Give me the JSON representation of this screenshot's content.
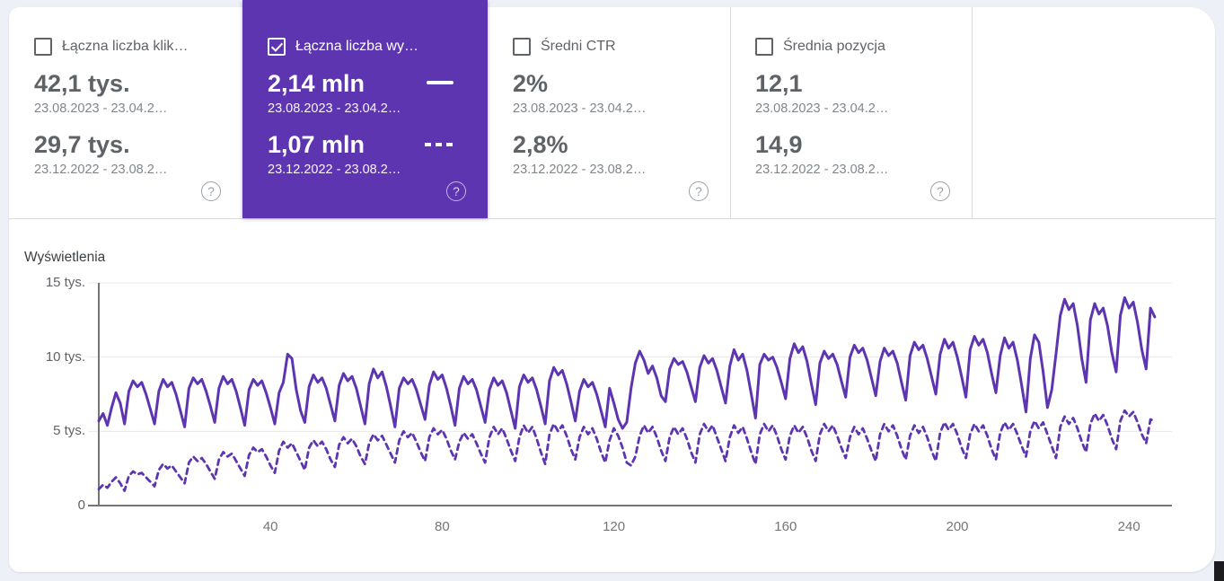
{
  "page": {
    "colors": {
      "background": "#edf0f6",
      "panel": "#ffffff",
      "accent": "#5e35b1",
      "divider": "#dadce0",
      "grid": "#e8e8e8",
      "axis": "#757575",
      "label": "#5f6368",
      "muted": "#80868b"
    }
  },
  "cards": {
    "help_glyph": "?",
    "items": [
      {
        "id": "clicks",
        "label": "Łączna liczba klik…",
        "checked": false,
        "value_current": "42,1 tys.",
        "period_current": "23.08.2023 - 23.04.2…",
        "value_previous": "29,7 tys.",
        "period_previous": "23.12.2022 - 23.08.2…"
      },
      {
        "id": "impressions",
        "label": "Łączna liczba wy…",
        "checked": true,
        "value_current": "2,14 mln",
        "period_current": "23.08.2023 - 23.04.2…",
        "value_previous": "1,07 mln",
        "period_previous": "23.12.2022 - 23.08.2…"
      },
      {
        "id": "ctr",
        "label": "Średni CTR",
        "checked": false,
        "value_current": "2%",
        "period_current": "23.08.2023 - 23.04.2…",
        "value_previous": "2,8%",
        "period_previous": "23.12.2022 - 23.08.2…"
      },
      {
        "id": "position",
        "label": "Średnia pozycja",
        "checked": false,
        "value_current": "12,1",
        "period_current": "23.08.2023 - 23.04.2…",
        "value_previous": "14,9",
        "period_previous": "23.12.2022 - 23.08.2…"
      }
    ]
  },
  "chart_data": {
    "type": "line",
    "title": "Wyświetlenia",
    "unit": "tys.",
    "ylim": [
      0,
      15
    ],
    "grid": true,
    "y_ticks": [
      {
        "label": "0",
        "value": 0
      },
      {
        "label": "5 tys.",
        "value": 5
      },
      {
        "label": "10 tys.",
        "value": 10
      },
      {
        "label": "15 tys.",
        "value": 15
      }
    ],
    "x_ticks": [
      {
        "label": "40",
        "value": 40
      },
      {
        "label": "80",
        "value": 80
      },
      {
        "label": "120",
        "value": 120
      },
      {
        "label": "160",
        "value": 160
      },
      {
        "label": "200",
        "value": 200
      },
      {
        "label": "240",
        "value": 240
      }
    ],
    "series": [
      {
        "name": "23.12.2022 - 23.08.2…",
        "style": "dashed",
        "color": "#5e35b1",
        "values": [
          1.1,
          1.4,
          1.2,
          1.6,
          1.9,
          1.5,
          1.0,
          2.0,
          2.3,
          2.1,
          2.2,
          1.9,
          1.6,
          1.3,
          2.4,
          2.8,
          2.5,
          2.7,
          2.3,
          1.9,
          1.5,
          2.9,
          3.3,
          3.0,
          3.2,
          2.8,
          2.3,
          1.8,
          3.1,
          3.6,
          3.3,
          3.5,
          3.0,
          2.5,
          2.0,
          3.4,
          3.9,
          3.6,
          3.8,
          3.3,
          2.7,
          2.2,
          3.7,
          4.3,
          3.9,
          4.2,
          3.6,
          3.0,
          2.4,
          3.9,
          4.4,
          4.0,
          4.3,
          3.8,
          3.1,
          2.6,
          4.1,
          4.6,
          4.2,
          4.5,
          4.0,
          3.3,
          2.8,
          4.2,
          4.8,
          4.4,
          4.7,
          4.1,
          3.5,
          2.9,
          4.4,
          5.0,
          4.6,
          4.9,
          4.3,
          3.6,
          3.0,
          4.6,
          5.2,
          4.8,
          5.1,
          4.5,
          3.7,
          3.1,
          4.3,
          4.9,
          4.5,
          4.8,
          4.2,
          3.5,
          2.9,
          4.6,
          5.3,
          4.8,
          5.2,
          4.5,
          3.7,
          3.0,
          4.6,
          5.4,
          4.9,
          5.3,
          4.5,
          3.6,
          2.8,
          4.8,
          5.5,
          5.0,
          5.4,
          4.7,
          3.8,
          3.1,
          4.6,
          5.3,
          4.8,
          5.2,
          4.5,
          3.6,
          2.9,
          4.4,
          5.2,
          4.7,
          3.9,
          2.9,
          2.7,
          3.3,
          4.7,
          5.4,
          4.9,
          5.3,
          4.6,
          3.7,
          3.0,
          4.6,
          5.3,
          4.8,
          5.2,
          4.5,
          3.6,
          2.9,
          4.8,
          5.5,
          5.0,
          5.4,
          4.6,
          3.8,
          3.0,
          4.6,
          5.4,
          4.9,
          5.3,
          4.5,
          3.6,
          2.8,
          4.8,
          5.5,
          5.0,
          5.4,
          4.7,
          3.8,
          3.1,
          4.7,
          5.4,
          4.9,
          5.3,
          4.6,
          3.7,
          3.0,
          4.8,
          5.5,
          5.0,
          5.4,
          4.7,
          3.9,
          3.2,
          4.6,
          5.3,
          4.8,
          5.2,
          4.5,
          3.7,
          3.0,
          4.8,
          5.5,
          5.0,
          5.4,
          4.7,
          3.8,
          3.1,
          4.7,
          5.4,
          4.9,
          5.3,
          4.6,
          3.7,
          3.0,
          4.9,
          5.6,
          5.1,
          5.5,
          4.8,
          3.9,
          3.2,
          4.8,
          5.5,
          5.0,
          5.4,
          4.7,
          3.8,
          3.1,
          4.9,
          5.6,
          5.1,
          5.5,
          4.8,
          4.0,
          3.3,
          5.0,
          5.7,
          5.2,
          5.6,
          4.8,
          4.0,
          3.2,
          5.3,
          6.0,
          5.5,
          5.9,
          5.2,
          4.3,
          3.6,
          5.5,
          6.2,
          5.7,
          6.1,
          5.4,
          4.5,
          3.8,
          5.7,
          6.4,
          6.0,
          6.3,
          5.6,
          4.8,
          4.2,
          5.8,
          5.7
        ]
      },
      {
        "name": "23.08.2023 - 23.04.2…",
        "style": "solid",
        "color": "#5e35b1",
        "values": [
          5.7,
          6.2,
          5.4,
          6.6,
          7.6,
          6.9,
          5.5,
          7.7,
          8.4,
          8.0,
          8.3,
          7.5,
          6.5,
          5.5,
          7.7,
          8.5,
          8.0,
          8.3,
          7.5,
          6.4,
          5.3,
          7.9,
          8.6,
          8.2,
          8.5,
          7.7,
          6.7,
          5.6,
          7.9,
          8.7,
          8.2,
          8.5,
          7.7,
          6.6,
          5.4,
          7.8,
          8.5,
          8.1,
          8.4,
          7.6,
          6.6,
          5.5,
          7.6,
          8.3,
          10.2,
          9.9,
          7.8,
          6.4,
          5.6,
          8.0,
          8.8,
          8.3,
          8.6,
          7.9,
          6.8,
          5.7,
          8.1,
          8.9,
          8.4,
          8.7,
          7.9,
          6.7,
          5.5,
          8.2,
          9.2,
          8.6,
          9.0,
          8.0,
          6.7,
          5.3,
          7.9,
          8.6,
          8.2,
          8.5,
          7.8,
          6.8,
          5.8,
          8.1,
          9.0,
          8.5,
          8.8,
          7.9,
          6.7,
          5.4,
          7.9,
          8.7,
          8.2,
          8.5,
          7.8,
          6.7,
          5.6,
          7.8,
          8.6,
          8.1,
          8.4,
          7.6,
          6.4,
          5.2,
          8.0,
          8.8,
          8.3,
          8.6,
          7.8,
          6.7,
          5.5,
          8.4,
          9.3,
          8.8,
          9.1,
          8.2,
          7.0,
          5.7,
          7.7,
          8.5,
          8.0,
          8.3,
          7.5,
          6.4,
          5.3,
          7.9,
          6.9,
          5.8,
          5.2,
          5.6,
          7.9,
          9.6,
          10.4,
          9.8,
          8.9,
          9.4,
          8.6,
          7.4,
          7.0,
          9.2,
          9.9,
          9.5,
          9.7,
          9.0,
          8.0,
          7.0,
          9.3,
          10.1,
          9.6,
          9.9,
          9.1,
          8.0,
          6.9,
          9.4,
          10.5,
          9.8,
          10.2,
          9.1,
          7.5,
          5.9,
          9.5,
          10.2,
          9.8,
          10.0,
          9.3,
          8.3,
          7.2,
          9.9,
          10.9,
          10.3,
          10.7,
          9.7,
          8.2,
          6.8,
          9.6,
          10.4,
          9.9,
          10.2,
          9.5,
          8.4,
          7.3,
          10.0,
          10.8,
          10.3,
          10.6,
          9.8,
          8.6,
          7.4,
          9.7,
          10.6,
          10.1,
          10.4,
          9.6,
          8.3,
          7.1,
          10.1,
          11.0,
          10.5,
          10.8,
          9.9,
          8.7,
          7.5,
          10.2,
          11.2,
          10.6,
          11.0,
          10.0,
          8.7,
          7.3,
          10.5,
          11.4,
          10.8,
          11.2,
          10.3,
          8.9,
          7.6,
          10.1,
          11.3,
          10.6,
          11.0,
          9.8,
          8.1,
          6.3,
          9.9,
          11.5,
          11.0,
          9.0,
          6.6,
          7.8,
          10.2,
          12.8,
          13.9,
          13.2,
          13.6,
          12.1,
          9.9,
          8.3,
          12.5,
          13.6,
          12.9,
          13.3,
          12.1,
          10.3,
          9.0,
          12.8,
          14.0,
          13.3,
          13.7,
          12.3,
          10.5,
          9.2,
          13.3,
          12.7
        ]
      }
    ]
  }
}
